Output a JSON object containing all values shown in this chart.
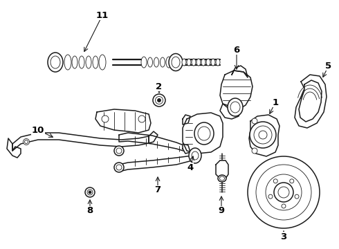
{
  "bg_color": "#ffffff",
  "line_color": "#1a1a1a",
  "fig_width": 4.9,
  "fig_height": 3.6,
  "dpi": 100,
  "label_fontsize": 9.5,
  "lw_main": 1.1,
  "lw_thin": 0.6,
  "lw_thick": 1.6
}
